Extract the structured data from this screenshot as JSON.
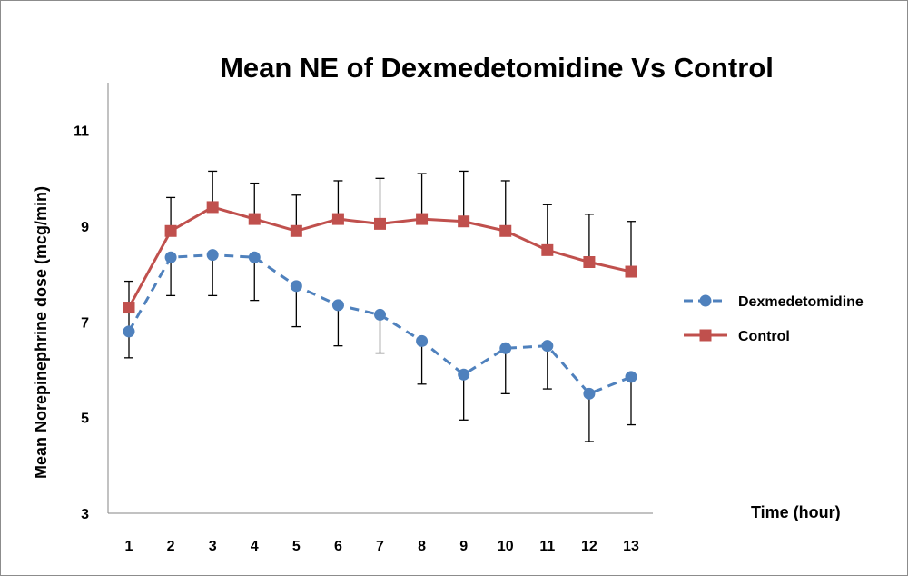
{
  "chart_data": {
    "type": "line",
    "title": "Mean NE of Dexmedetomidine Vs Control",
    "xlabel": "Time (hour)",
    "ylabel": "Mean Norepinephrine dose (mcg/min)",
    "categories": [
      "1",
      "2",
      "3",
      "4",
      "5",
      "6",
      "7",
      "8",
      "9",
      "10",
      "11",
      "12",
      "13"
    ],
    "ylim": [
      3,
      12
    ],
    "yticks": [
      "3",
      "5",
      "7",
      "9",
      "11"
    ],
    "grid": false,
    "legend_position": "right",
    "series": [
      {
        "name": "Dexmedetomidine",
        "color": "#4F81BD",
        "line_style": "dashed",
        "marker": "circle",
        "values": [
          6.8,
          8.35,
          8.4,
          8.35,
          7.75,
          7.35,
          7.15,
          6.6,
          5.9,
          6.45,
          6.5,
          5.5,
          5.85
        ],
        "error_upper": [
          7.3,
          8.35,
          8.4,
          8.35,
          7.75,
          7.35,
          7.15,
          6.6,
          5.9,
          6.45,
          6.5,
          5.5,
          5.85
        ],
        "error_lower": [
          6.25,
          7.55,
          7.55,
          7.45,
          6.9,
          6.5,
          6.35,
          5.7,
          4.95,
          5.5,
          5.6,
          4.5,
          4.85
        ]
      },
      {
        "name": "Control",
        "color": "#C0504D",
        "line_style": "solid",
        "marker": "square",
        "values": [
          7.3,
          8.9,
          9.4,
          9.15,
          8.9,
          9.15,
          9.05,
          9.15,
          9.1,
          8.9,
          8.5,
          8.25,
          8.05
        ],
        "error_upper": [
          7.85,
          9.6,
          10.15,
          9.9,
          9.65,
          9.95,
          10.0,
          10.1,
          10.15,
          9.95,
          9.45,
          9.25,
          9.1
        ],
        "error_lower": [
          7.3,
          8.9,
          9.4,
          9.15,
          8.9,
          9.15,
          9.05,
          9.15,
          9.1,
          8.9,
          8.5,
          8.25,
          8.05
        ]
      }
    ]
  }
}
